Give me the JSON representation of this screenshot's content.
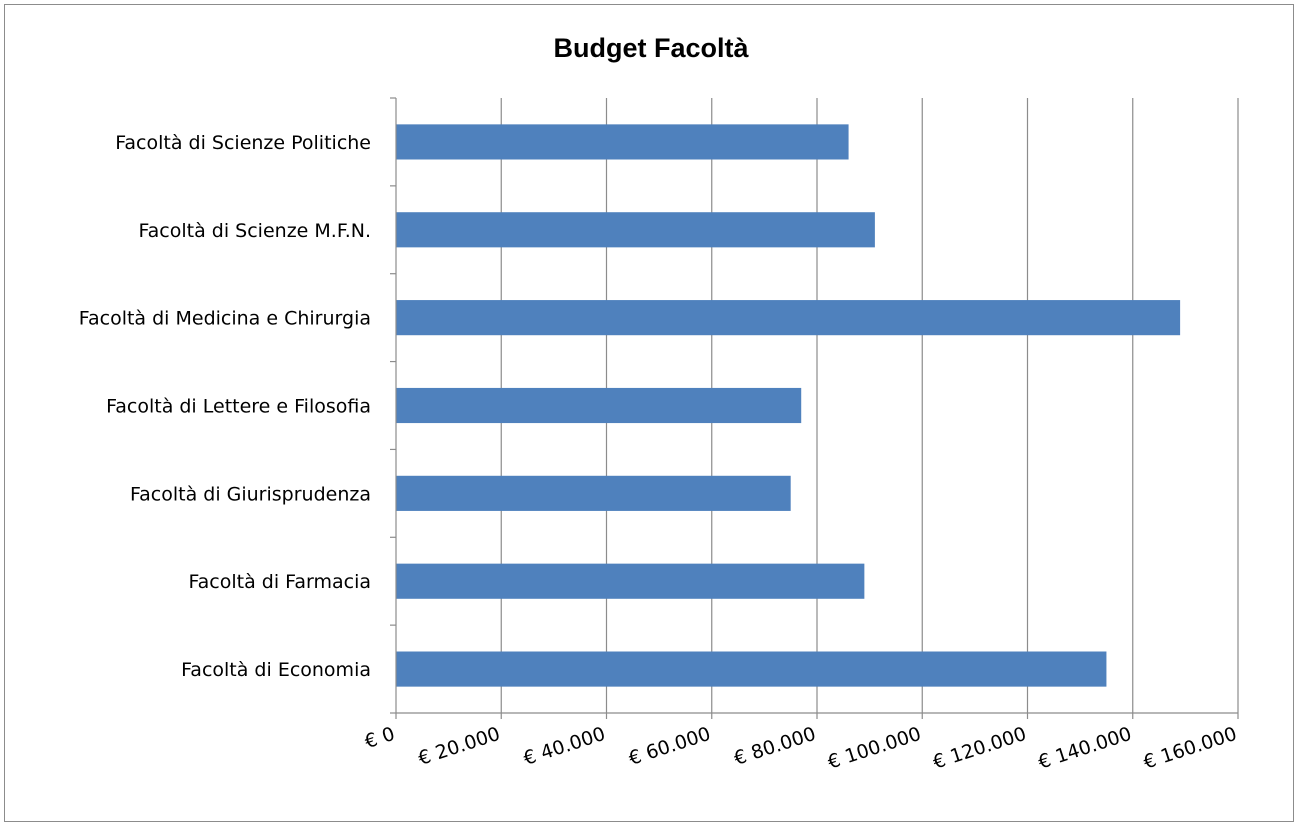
{
  "chart_data": {
    "type": "bar",
    "orientation": "horizontal",
    "title": "Budget Facoltà",
    "categories": [
      "Facoltà di Scienze Politiche",
      "Facoltà di Scienze M.F.N.",
      "Facoltà di Medicina e Chirurgia",
      "Facoltà di Lettere e Filosofia",
      "Facoltà di Giurisprudenza",
      "Facoltà di Farmacia",
      "Facoltà di Economia"
    ],
    "values": [
      86000,
      91000,
      149000,
      77000,
      75000,
      89000,
      135000
    ],
    "xlim": [
      0,
      160000
    ],
    "x_ticks": [
      0,
      20000,
      40000,
      60000,
      80000,
      100000,
      120000,
      140000,
      160000
    ],
    "x_tick_labels": [
      "€ 0",
      "€ 20.000",
      "€ 40.000",
      "€ 60.000",
      "€ 80.000",
      "€ 100.000",
      "€ 120.000",
      "€ 140.000",
      "€ 160.000"
    ],
    "xlabel": "",
    "ylabel": "",
    "grid": "vertical",
    "legend": "none",
    "bar_color": "#4f81bd",
    "grid_color": "#8c8c8c"
  }
}
